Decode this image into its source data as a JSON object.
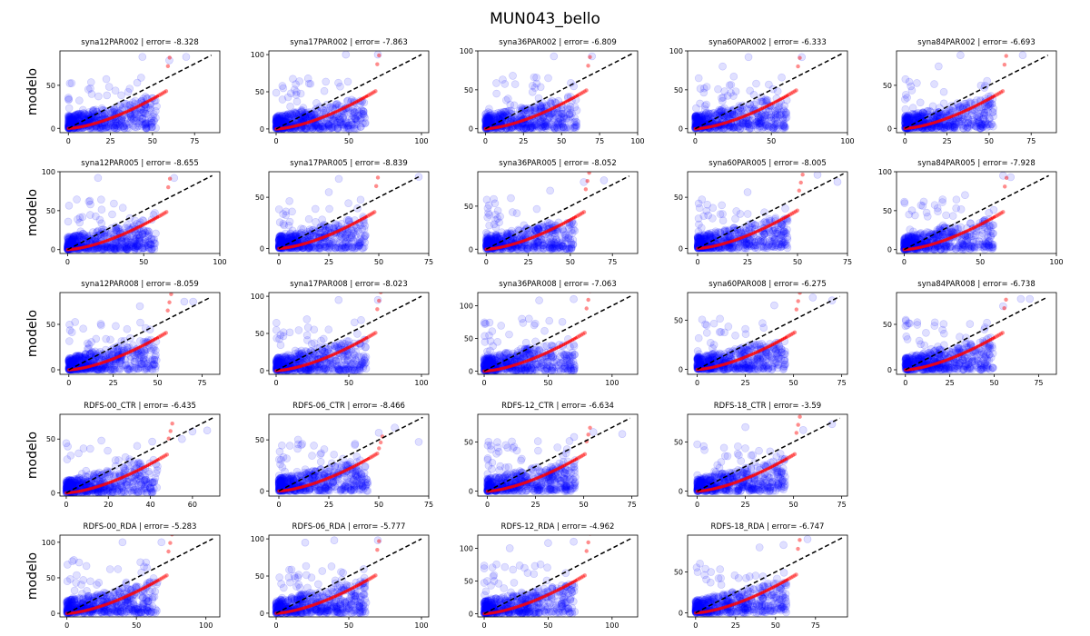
{
  "figure": {
    "title": "MUN043_bello",
    "row_ylabel": "modelo"
  },
  "colors": {
    "scatter": "#0000ff",
    "quantile": "#ff0000",
    "diagonal": "#000000",
    "axes": "#000000"
  },
  "chart_data": [
    {
      "type": "scatter",
      "title": "syna12PAR002 | error= -8.328",
      "xlim": [
        -5,
        90
      ],
      "ylim": [
        -5,
        90
      ],
      "xticks": [
        0,
        25,
        50,
        75
      ],
      "yticks": [
        0,
        50
      ],
      "max": 85,
      "diag_end": 85,
      "seed": 1,
      "top_points": [
        [
          70,
          83
        ],
        [
          60,
          79
        ],
        [
          44,
          83
        ]
      ]
    },
    {
      "type": "scatter",
      "title": "syna17PAR002 | error= -7.863",
      "xlim": [
        -5,
        105
      ],
      "ylim": [
        -5,
        105
      ],
      "xticks": [
        0,
        50,
        100
      ],
      "yticks": [
        0,
        50,
        100
      ],
      "max": 100,
      "diag_end": 100,
      "seed": 2,
      "top_points": [
        [
          70,
          100
        ],
        [
          48,
          100
        ],
        [
          22,
          68
        ]
      ]
    },
    {
      "type": "scatter",
      "title": "syna36PAR002 | error= -6.809",
      "xlim": [
        -5,
        100
      ],
      "ylim": [
        -5,
        100
      ],
      "xticks": [
        0,
        25,
        50,
        75,
        100
      ],
      "yticks": [
        0,
        50,
        100
      ],
      "max": 97,
      "diag_end": 97,
      "seed": 3,
      "top_points": [
        [
          70,
          93
        ],
        [
          45,
          93
        ],
        [
          18,
          68
        ]
      ]
    },
    {
      "type": "scatter",
      "title": "syna60PAR002 | error= -6.333",
      "xlim": [
        -5,
        100
      ],
      "ylim": [
        -5,
        100
      ],
      "xticks": [
        0,
        50,
        100
      ],
      "yticks": [
        0,
        50,
        100
      ],
      "max": 97,
      "diag_end": 97,
      "seed": 4,
      "top_points": [
        [
          70,
          92
        ],
        [
          35,
          92
        ],
        [
          18,
          80
        ]
      ]
    },
    {
      "type": "scatter",
      "title": "syna84PAR002 | error= -6.693",
      "xlim": [
        -5,
        90
      ],
      "ylim": [
        -5,
        90
      ],
      "xticks": [
        0,
        25,
        50,
        75
      ],
      "yticks": [
        0,
        50
      ],
      "max": 85,
      "diag_end": 85,
      "seed": 5,
      "top_points": [
        [
          70,
          85
        ],
        [
          33,
          85
        ],
        [
          20,
          72
        ]
      ]
    },
    {
      "type": "scatter",
      "title": "syna12PAR005 | error= -8.655",
      "xlim": [
        -5,
        100
      ],
      "ylim": [
        -5,
        100
      ],
      "xticks": [
        0,
        50,
        100
      ],
      "yticks": [
        0,
        50,
        100
      ],
      "max": 95,
      "diag_end": 95,
      "seed": 6,
      "top_points": [
        [
          70,
          92
        ],
        [
          20,
          92
        ],
        [
          15,
          58
        ]
      ]
    },
    {
      "type": "scatter",
      "title": "syna17PAR005 | error= -8.839",
      "xlim": [
        -5,
        75
      ],
      "ylim": [
        -5,
        75
      ],
      "xticks": [
        0,
        25,
        50,
        75
      ],
      "yticks": [
        0,
        50
      ],
      "max": 70,
      "diag_end": 70,
      "seed": 7,
      "top_points": [
        [
          70,
          70
        ],
        [
          30,
          68
        ],
        [
          25,
          55
        ]
      ]
    },
    {
      "type": "scatter",
      "title": "syna36PAR005 | error= -8.052",
      "xlim": [
        -5,
        90
      ],
      "ylim": [
        -5,
        90
      ],
      "xticks": [
        0,
        25,
        50,
        75
      ],
      "yticks": [
        0,
        50
      ],
      "max": 85,
      "diag_end": 85,
      "seed": 8,
      "top_points": [
        [
          70,
          80
        ],
        [
          58,
          78
        ],
        [
          38,
          68
        ]
      ]
    },
    {
      "type": "scatter",
      "title": "syna60PAR005 | error= -8.005",
      "xlim": [
        -5,
        75
      ],
      "ylim": [
        -5,
        75
      ],
      "xticks": [
        0,
        25,
        50,
        75
      ],
      "yticks": [
        0,
        50
      ],
      "max": 73,
      "diag_end": 73,
      "seed": 9,
      "top_points": [
        [
          70,
          65
        ],
        [
          60,
          72
        ],
        [
          25,
          55
        ]
      ]
    },
    {
      "type": "scatter",
      "title": "syna84PAR005 | error= -7.928",
      "xlim": [
        -5,
        100
      ],
      "ylim": [
        -5,
        100
      ],
      "xticks": [
        0,
        50,
        100
      ],
      "yticks": [
        0,
        50,
        100
      ],
      "max": 95,
      "diag_end": 95,
      "seed": 10,
      "top_points": [
        [
          70,
          93
        ],
        [
          65,
          95
        ],
        [
          40,
          70
        ]
      ]
    },
    {
      "type": "scatter",
      "title": "syna12PAR008 | error= -8.059",
      "xlim": [
        -5,
        85
      ],
      "ylim": [
        -5,
        85
      ],
      "xticks": [
        0,
        25,
        50,
        75
      ],
      "yticks": [
        0,
        50
      ],
      "max": 80,
      "diag_end": 80,
      "seed": 11,
      "top_points": [
        [
          70,
          75
        ],
        [
          65,
          75
        ],
        [
          40,
          70
        ]
      ]
    },
    {
      "type": "scatter",
      "title": "syna17PAR008 | error= -8.023",
      "xlim": [
        -5,
        105
      ],
      "ylim": [
        -5,
        105
      ],
      "xticks": [
        0,
        50,
        100
      ],
      "yticks": [
        0,
        50,
        100
      ],
      "max": 100,
      "diag_end": 100,
      "seed": 12,
      "top_points": [
        [
          70,
          95
        ],
        [
          43,
          95
        ],
        [
          22,
          58
        ]
      ]
    },
    {
      "type": "scatter",
      "title": "syna36PAR008 | error= -7.063",
      "xlim": [
        -5,
        120
      ],
      "ylim": [
        -5,
        120
      ],
      "xticks": [
        0,
        50,
        100
      ],
      "yticks": [
        0,
        50,
        100
      ],
      "max": 115,
      "diag_end": 115,
      "seed": 13,
      "top_points": [
        [
          70,
          110
        ],
        [
          43,
          108
        ],
        [
          35,
          80
        ]
      ]
    },
    {
      "type": "scatter",
      "title": "syna60PAR008 | error= -6.275",
      "xlim": [
        -5,
        78
      ],
      "ylim": [
        -5,
        78
      ],
      "xticks": [
        0,
        25,
        50,
        75
      ],
      "yticks": [
        0,
        50
      ],
      "max": 74,
      "diag_end": 74,
      "seed": 14,
      "top_points": [
        [
          70,
          70
        ],
        [
          60,
          73
        ],
        [
          40,
          65
        ]
      ]
    },
    {
      "type": "scatter",
      "title": "syna84PAR008 | error= -6.738",
      "xlim": [
        -5,
        85
      ],
      "ylim": [
        -5,
        85
      ],
      "xticks": [
        0,
        25,
        50,
        75
      ],
      "yticks": [
        0,
        50
      ],
      "max": 80,
      "diag_end": 80,
      "seed": 15,
      "top_points": [
        [
          70,
          78
        ],
        [
          65,
          78
        ],
        [
          55,
          70
        ]
      ]
    },
    {
      "type": "scatter",
      "title": "RDFS-00_CTR | error= -6.435",
      "xlim": [
        -3,
        73
      ],
      "ylim": [
        -3,
        73
      ],
      "xticks": [
        0,
        20,
        40,
        60
      ],
      "yticks": [
        0,
        50
      ],
      "max": 70,
      "diag_end": 70,
      "seed": 16,
      "top_points": [
        [
          67,
          58
        ],
        [
          60,
          57
        ],
        [
          55,
          50
        ]
      ]
    },
    {
      "type": "scatter",
      "title": "RDFS-06_CTR | error= -8.466",
      "xlim": [
        -5,
        75
      ],
      "ylim": [
        -5,
        75
      ],
      "xticks": [
        0,
        25,
        50,
        75
      ],
      "yticks": [
        0,
        50
      ],
      "max": 72,
      "diag_end": 72,
      "seed": 17,
      "top_points": [
        [
          70,
          48
        ],
        [
          58,
          62
        ],
        [
          50,
          57
        ]
      ]
    },
    {
      "type": "scatter",
      "title": "RDFS-12_CTR | error= -6.634",
      "xlim": [
        -5,
        78
      ],
      "ylim": [
        -5,
        78
      ],
      "xticks": [
        0,
        25,
        50,
        75
      ],
      "yticks": [
        0,
        50
      ],
      "max": 74,
      "diag_end": 74,
      "seed": 18,
      "top_points": [
        [
          70,
          58
        ],
        [
          55,
          60
        ],
        [
          45,
          55
        ]
      ]
    },
    {
      "type": "scatter",
      "title": "RDFS-18_CTR | error= -3.59",
      "xlim": [
        -5,
        78
      ],
      "ylim": [
        -5,
        78
      ],
      "xticks": [
        0,
        25,
        50,
        75
      ],
      "yticks": [
        0,
        50
      ],
      "max": 74,
      "diag_end": 74,
      "seed": 19,
      "top_points": [
        [
          70,
          68
        ],
        [
          25,
          65
        ],
        [
          55,
          62
        ]
      ]
    },
    {
      "type": "scatter",
      "title": "RDFS-00_RDA | error= -5.283",
      "xlim": [
        -5,
        110
      ],
      "ylim": [
        -5,
        110
      ],
      "xticks": [
        0,
        50,
        100
      ],
      "yticks": [
        0,
        50,
        100
      ],
      "max": 105,
      "diag_end": 105,
      "seed": 20,
      "top_points": [
        [
          68,
          100
        ],
        [
          40,
          100
        ],
        [
          5,
          75
        ]
      ]
    },
    {
      "type": "scatter",
      "title": "RDFS-06_RDA | error= -5.777",
      "xlim": [
        -5,
        105
      ],
      "ylim": [
        -5,
        105
      ],
      "xticks": [
        0,
        50,
        100
      ],
      "yticks": [
        0,
        50,
        100
      ],
      "max": 100,
      "diag_end": 100,
      "seed": 21,
      "top_points": [
        [
          70,
          98
        ],
        [
          40,
          98
        ],
        [
          20,
          95
        ]
      ]
    },
    {
      "type": "scatter",
      "title": "RDFS-12_RDA | error= -4.962",
      "xlim": [
        -5,
        120
      ],
      "ylim": [
        -5,
        120
      ],
      "xticks": [
        0,
        50,
        100
      ],
      "yticks": [
        0,
        50,
        100
      ],
      "max": 115,
      "diag_end": 115,
      "seed": 22,
      "top_points": [
        [
          70,
          110
        ],
        [
          50,
          108
        ],
        [
          20,
          100
        ]
      ]
    },
    {
      "type": "scatter",
      "title": "RDFS-18_RDA | error= -6.747",
      "xlim": [
        -5,
        95
      ],
      "ylim": [
        -5,
        95
      ],
      "xticks": [
        0,
        25,
        50,
        75
      ],
      "yticks": [
        0,
        50
      ],
      "max": 92,
      "diag_end": 92,
      "seed": 23,
      "top_points": [
        [
          70,
          90
        ],
        [
          55,
          83
        ],
        [
          40,
          80
        ]
      ]
    }
  ]
}
